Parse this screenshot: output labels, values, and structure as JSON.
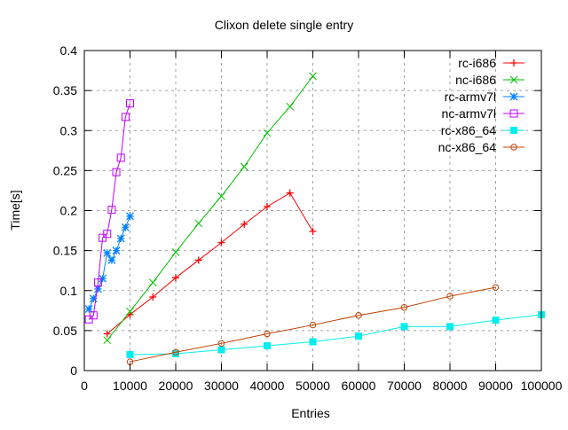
{
  "chart_data": {
    "type": "line",
    "title": "Clixon delete single entry",
    "xlabel": "Entries",
    "ylabel": "Time[s]",
    "xlim": [
      0,
      100000
    ],
    "ylim": [
      0,
      0.4
    ],
    "xticks": [
      "0",
      "10000",
      "20000",
      "30000",
      "40000",
      "50000",
      "60000",
      "70000",
      "80000",
      "90000",
      "100000"
    ],
    "yticks": [
      "0",
      "0.05",
      "0.1",
      "0.15",
      "0.2",
      "0.25",
      "0.3",
      "0.35",
      "0.4"
    ],
    "grid": true,
    "legend": "top-right",
    "series": [
      {
        "name": "rc-i686",
        "color": "#ff0000",
        "marker": "plus",
        "x": [
          5000,
          10000,
          15000,
          20000,
          25000,
          30000,
          35000,
          40000,
          45000,
          50000
        ],
        "y": [
          0.046,
          0.07,
          0.092,
          0.116,
          0.138,
          0.16,
          0.183,
          0.205,
          0.222,
          0.174
        ]
      },
      {
        "name": "nc-i686",
        "color": "#00c000",
        "marker": "cross",
        "x": [
          5000,
          10000,
          15000,
          20000,
          25000,
          30000,
          35000,
          40000,
          45000,
          50000
        ],
        "y": [
          0.038,
          0.074,
          0.11,
          0.148,
          0.184,
          0.218,
          0.255,
          0.297,
          0.33,
          0.368
        ]
      },
      {
        "name": "rc-armv7l",
        "color": "#0080ff",
        "marker": "star",
        "x": [
          1000,
          2000,
          3000,
          4000,
          5000,
          6000,
          7000,
          8000,
          9000,
          10000
        ],
        "y": [
          0.077,
          0.09,
          0.102,
          0.115,
          0.147,
          0.138,
          0.15,
          0.165,
          0.179,
          0.193
        ]
      },
      {
        "name": "nc-armv7l",
        "color": "#c000ff",
        "marker": "open-square",
        "x": [
          1000,
          2000,
          3000,
          4000,
          5000,
          6000,
          7000,
          8000,
          9000,
          10000
        ],
        "y": [
          0.064,
          0.069,
          0.11,
          0.166,
          0.171,
          0.201,
          0.248,
          0.266,
          0.317,
          0.334
        ]
      },
      {
        "name": "rc-x86_64",
        "color": "#00eeee",
        "marker": "filled-square",
        "x": [
          10000,
          20000,
          30000,
          40000,
          50000,
          60000,
          70000,
          80000,
          90000,
          100000
        ],
        "y": [
          0.02,
          0.021,
          0.026,
          0.031,
          0.036,
          0.043,
          0.055,
          0.055,
          0.063,
          0.07
        ]
      },
      {
        "name": "nc-x86_64",
        "color": "#c04000",
        "marker": "open-circle",
        "x": [
          10000,
          20000,
          30000,
          40000,
          50000,
          60000,
          70000,
          80000,
          90000
        ],
        "y": [
          0.011,
          0.023,
          0.034,
          0.046,
          0.057,
          0.069,
          0.079,
          0.093,
          0.104
        ]
      }
    ]
  }
}
